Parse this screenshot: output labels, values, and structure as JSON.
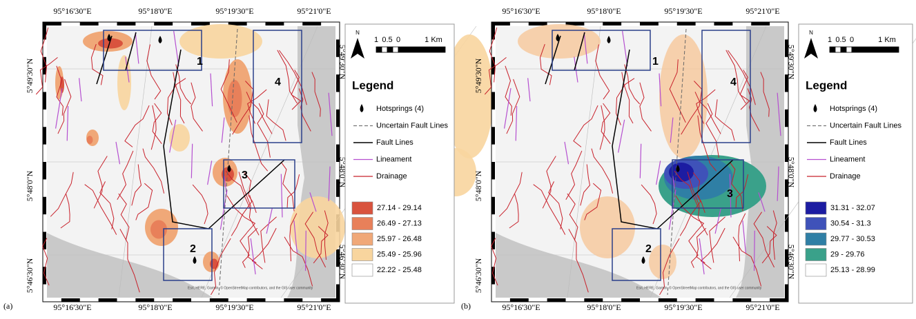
{
  "panels": [
    {
      "label": "(a)",
      "top_labels": [
        "95°16'30\"E",
        "95°18'0\"E",
        "95°19'30\"E",
        "95°21'0\"E"
      ],
      "bottom_labels": [
        "95°16'30\"E",
        "95°18'0\"E",
        "95°19'30\"E",
        "95°21'0\"E"
      ],
      "left_labels": [
        "5°49'30\"N",
        "5°48'0\"N",
        "5°46'30\"N"
      ],
      "right_labels": [
        "5°49'30\"N",
        "5°48'0\"N",
        "5°46'30\"N"
      ],
      "zones": [
        "1",
        "2",
        "3",
        "4"
      ],
      "north": "N",
      "scale_labels": [
        "1",
        "0.5",
        "0",
        "1 Km"
      ],
      "legend_title": "Legend",
      "legend_items": [
        "Hotsprings (4)",
        "Uncertain Fault Lines",
        "Fault Lines",
        "Lineament",
        "Drainage"
      ],
      "classes": [
        {
          "label": "27.14 - 29.14",
          "color": "#d9533e"
        },
        {
          "label": "26.49 - 27.13",
          "color": "#e8805a"
        },
        {
          "label": "25.97 - 26.48",
          "color": "#f0a878"
        },
        {
          "label": "25.49 - 25.96",
          "color": "#f8d59e"
        },
        {
          "label": "22.22 - 25.48",
          "color": "#ffffff"
        }
      ],
      "attribution": "Esri, HERE, Garmin, © OpenStreetMap contributors, and the GIS user community"
    },
    {
      "label": "(b)",
      "top_labels": [
        "95°16'30\"E",
        "95°18'0\"E",
        "95°19'30\"E",
        "95°21'0\"E"
      ],
      "bottom_labels": [
        "95°16'30\"E",
        "95°18'0\"E",
        "95°19'30\"E",
        "95°21'0\"E"
      ],
      "left_labels": [
        "5°49'30\"N",
        "5°48'0\"N",
        "5°46'30\"N"
      ],
      "right_labels": [
        "5°49'30\"N",
        "5°48'0\"N",
        "5°46'30\"N"
      ],
      "zones": [
        "1",
        "2",
        "3",
        "4"
      ],
      "north": "N",
      "scale_labels": [
        "1",
        "0.5",
        "0",
        "1 Km"
      ],
      "legend_title": "Legend",
      "legend_items": [
        "Hotsprings (4)",
        "Uncertain Fault Lines",
        "Fault Lines",
        "Lineament",
        "Drainage"
      ],
      "classes": [
        {
          "label": "31.31 - 32.07",
          "color": "#1c1ca2"
        },
        {
          "label": "30.54 - 31.3",
          "color": "#3f52b9"
        },
        {
          "label": "29.77 - 30.53",
          "color": "#2f7fa5"
        },
        {
          "label": "29 - 29.76",
          "color": "#3aa18a"
        },
        {
          "label": "25.13 - 28.99",
          "color": "#ffffff"
        }
      ],
      "attribution": "Esri, HERE, Garmin, © OpenStreetMap contributors, and the GIS user community"
    }
  ]
}
